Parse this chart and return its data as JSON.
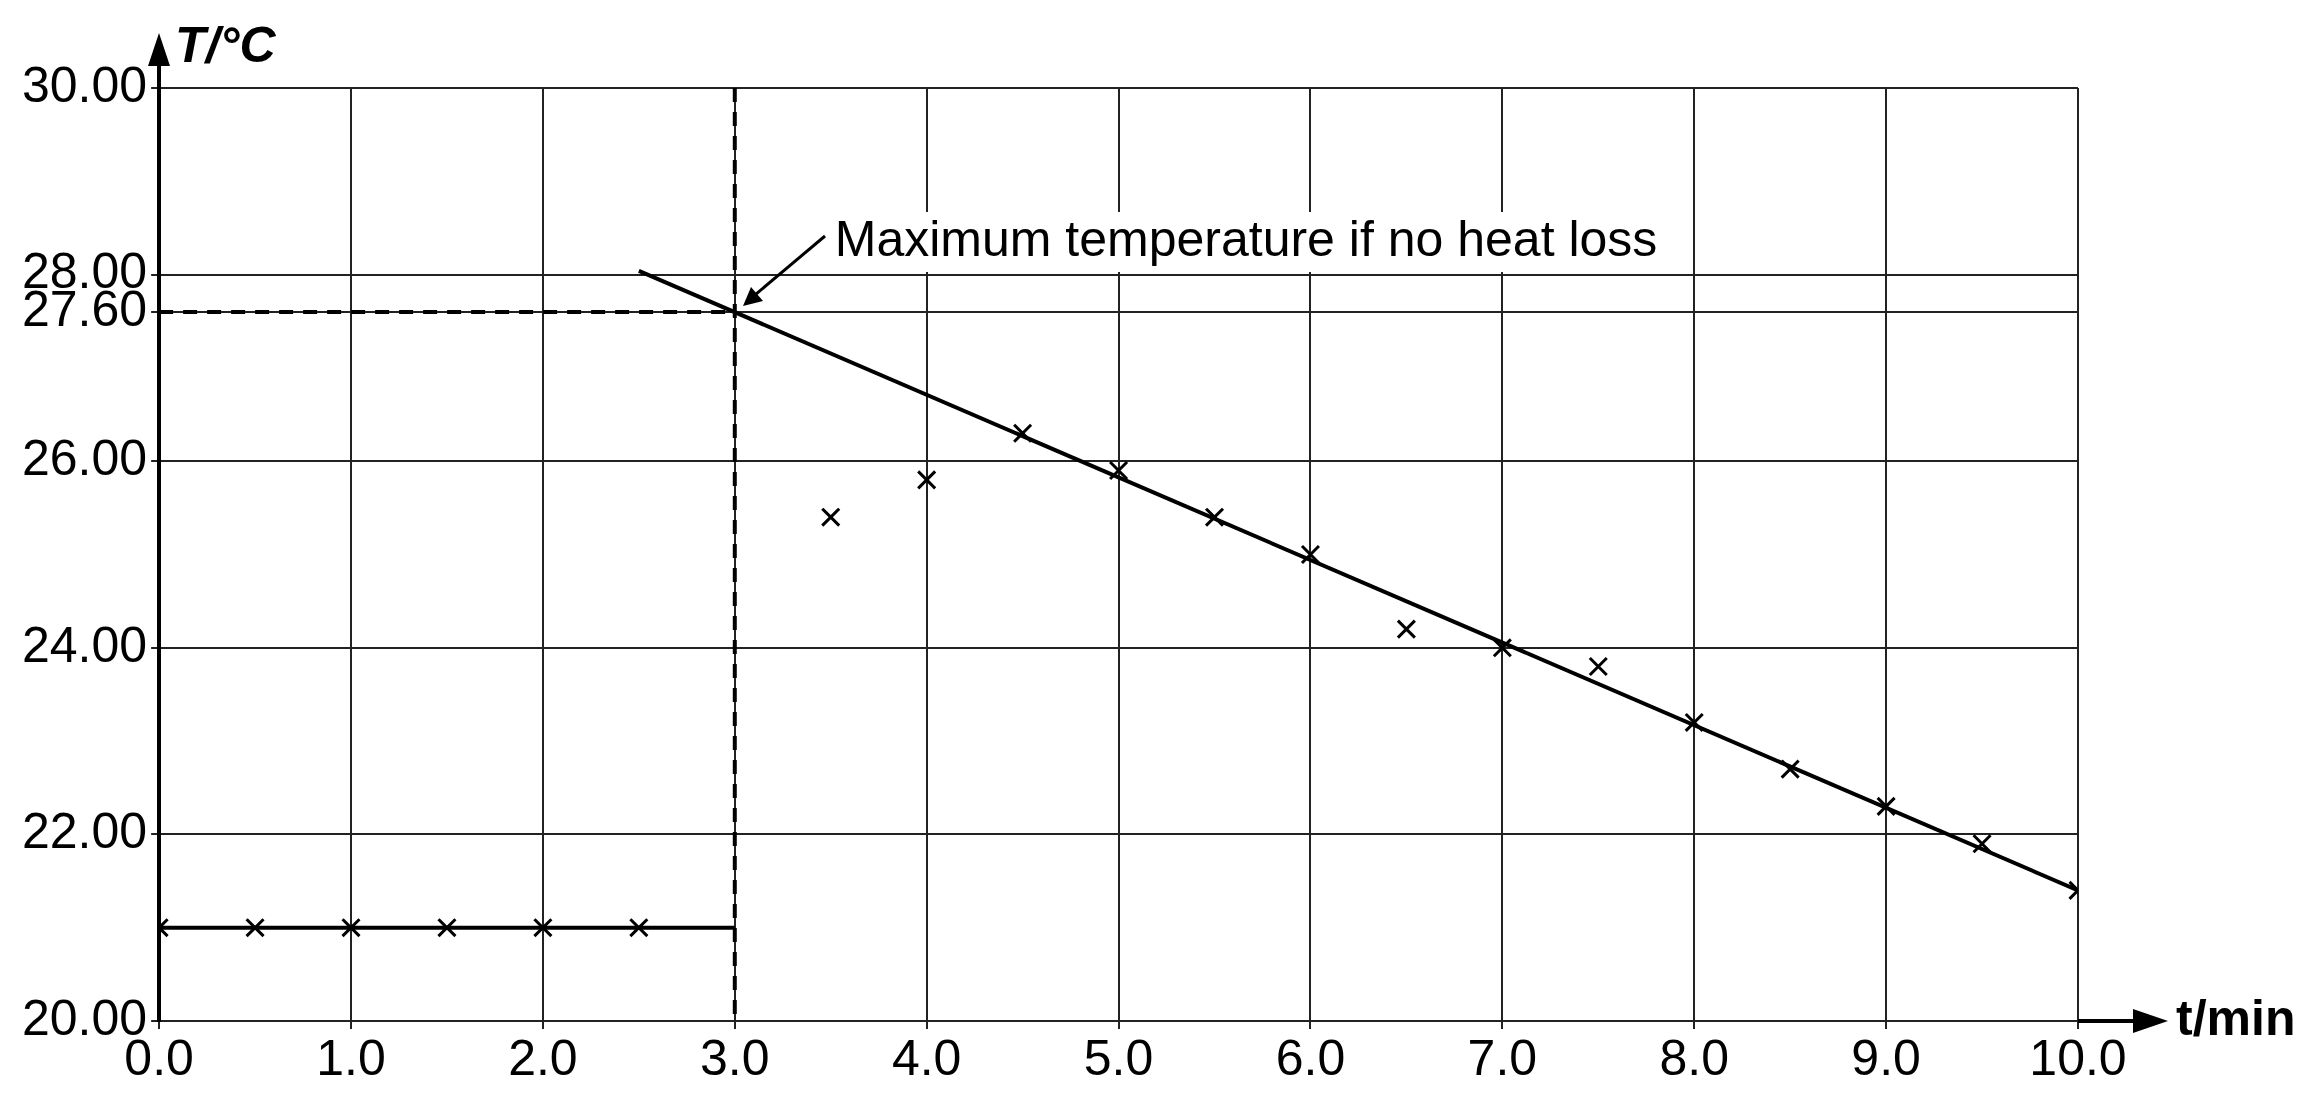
{
  "chart_data": {
    "type": "scatter",
    "xlabel": "t/min",
    "ylabel": "T/°C",
    "xlim": [
      0,
      10
    ],
    "ylim": [
      20,
      30
    ],
    "xticks": [
      {
        "value": 0,
        "label": "0.0"
      },
      {
        "value": 1,
        "label": "1.0"
      },
      {
        "value": 2,
        "label": "2.0"
      },
      {
        "value": 3,
        "label": "3.0"
      },
      {
        "value": 4,
        "label": "4.0"
      },
      {
        "value": 5,
        "label": "5.0"
      },
      {
        "value": 6,
        "label": "6.0"
      },
      {
        "value": 7,
        "label": "7.0"
      },
      {
        "value": 8,
        "label": "8.0"
      },
      {
        "value": 9,
        "label": "9.0"
      },
      {
        "value": 10,
        "label": "10.0"
      }
    ],
    "yticks": [
      {
        "value": 20,
        "label": "20.00"
      },
      {
        "value": 22,
        "label": "22.00"
      },
      {
        "value": 24,
        "label": "24.00"
      },
      {
        "value": 26,
        "label": "26.00"
      },
      {
        "value": 27.6,
        "label": "27.60"
      },
      {
        "value": 28,
        "label": "28.00"
      },
      {
        "value": 30,
        "label": "30.00"
      }
    ],
    "grid": true,
    "legend": false,
    "series": [
      {
        "color": "#000000",
        "marker": "cross",
        "x": [
          0,
          0.5,
          1,
          1.5,
          2,
          2.5,
          3.5,
          4,
          4.5,
          5,
          5.5,
          6,
          6.5,
          7,
          7.5,
          8,
          8.5,
          9,
          9.5,
          10
        ],
        "values": [
          21.0,
          21.0,
          21.0,
          21.0,
          21.0,
          21.0,
          25.4,
          25.8,
          26.3,
          25.9,
          25.4,
          25.0,
          24.2,
          24.0,
          23.8,
          23.2,
          22.7,
          22.3,
          21.9,
          21.4
        ]
      },
      {
        "type": "line",
        "color": "#000000",
        "marker": "none",
        "line_style": "solid",
        "x": [
          0,
          3
        ],
        "values": [
          21.0,
          21.0
        ]
      },
      {
        "type": "line",
        "color": "#000000",
        "marker": "none",
        "line_style": "solid",
        "x": [
          2.5,
          10
        ],
        "values": [
          28.04,
          21.4
        ]
      },
      {
        "type": "line",
        "color": "#000000",
        "marker": "none",
        "line_style": "dashed",
        "x": [
          0,
          3
        ],
        "values": [
          27.6,
          27.6
        ]
      }
    ],
    "ref_lines": [
      {
        "axis": "x",
        "value": 3,
        "line_style": "dashed",
        "color": "#000000"
      }
    ],
    "annotations": [
      {
        "text": "Maximum temperature if no heat loss",
        "x": 3,
        "y": 27.6
      }
    ]
  }
}
